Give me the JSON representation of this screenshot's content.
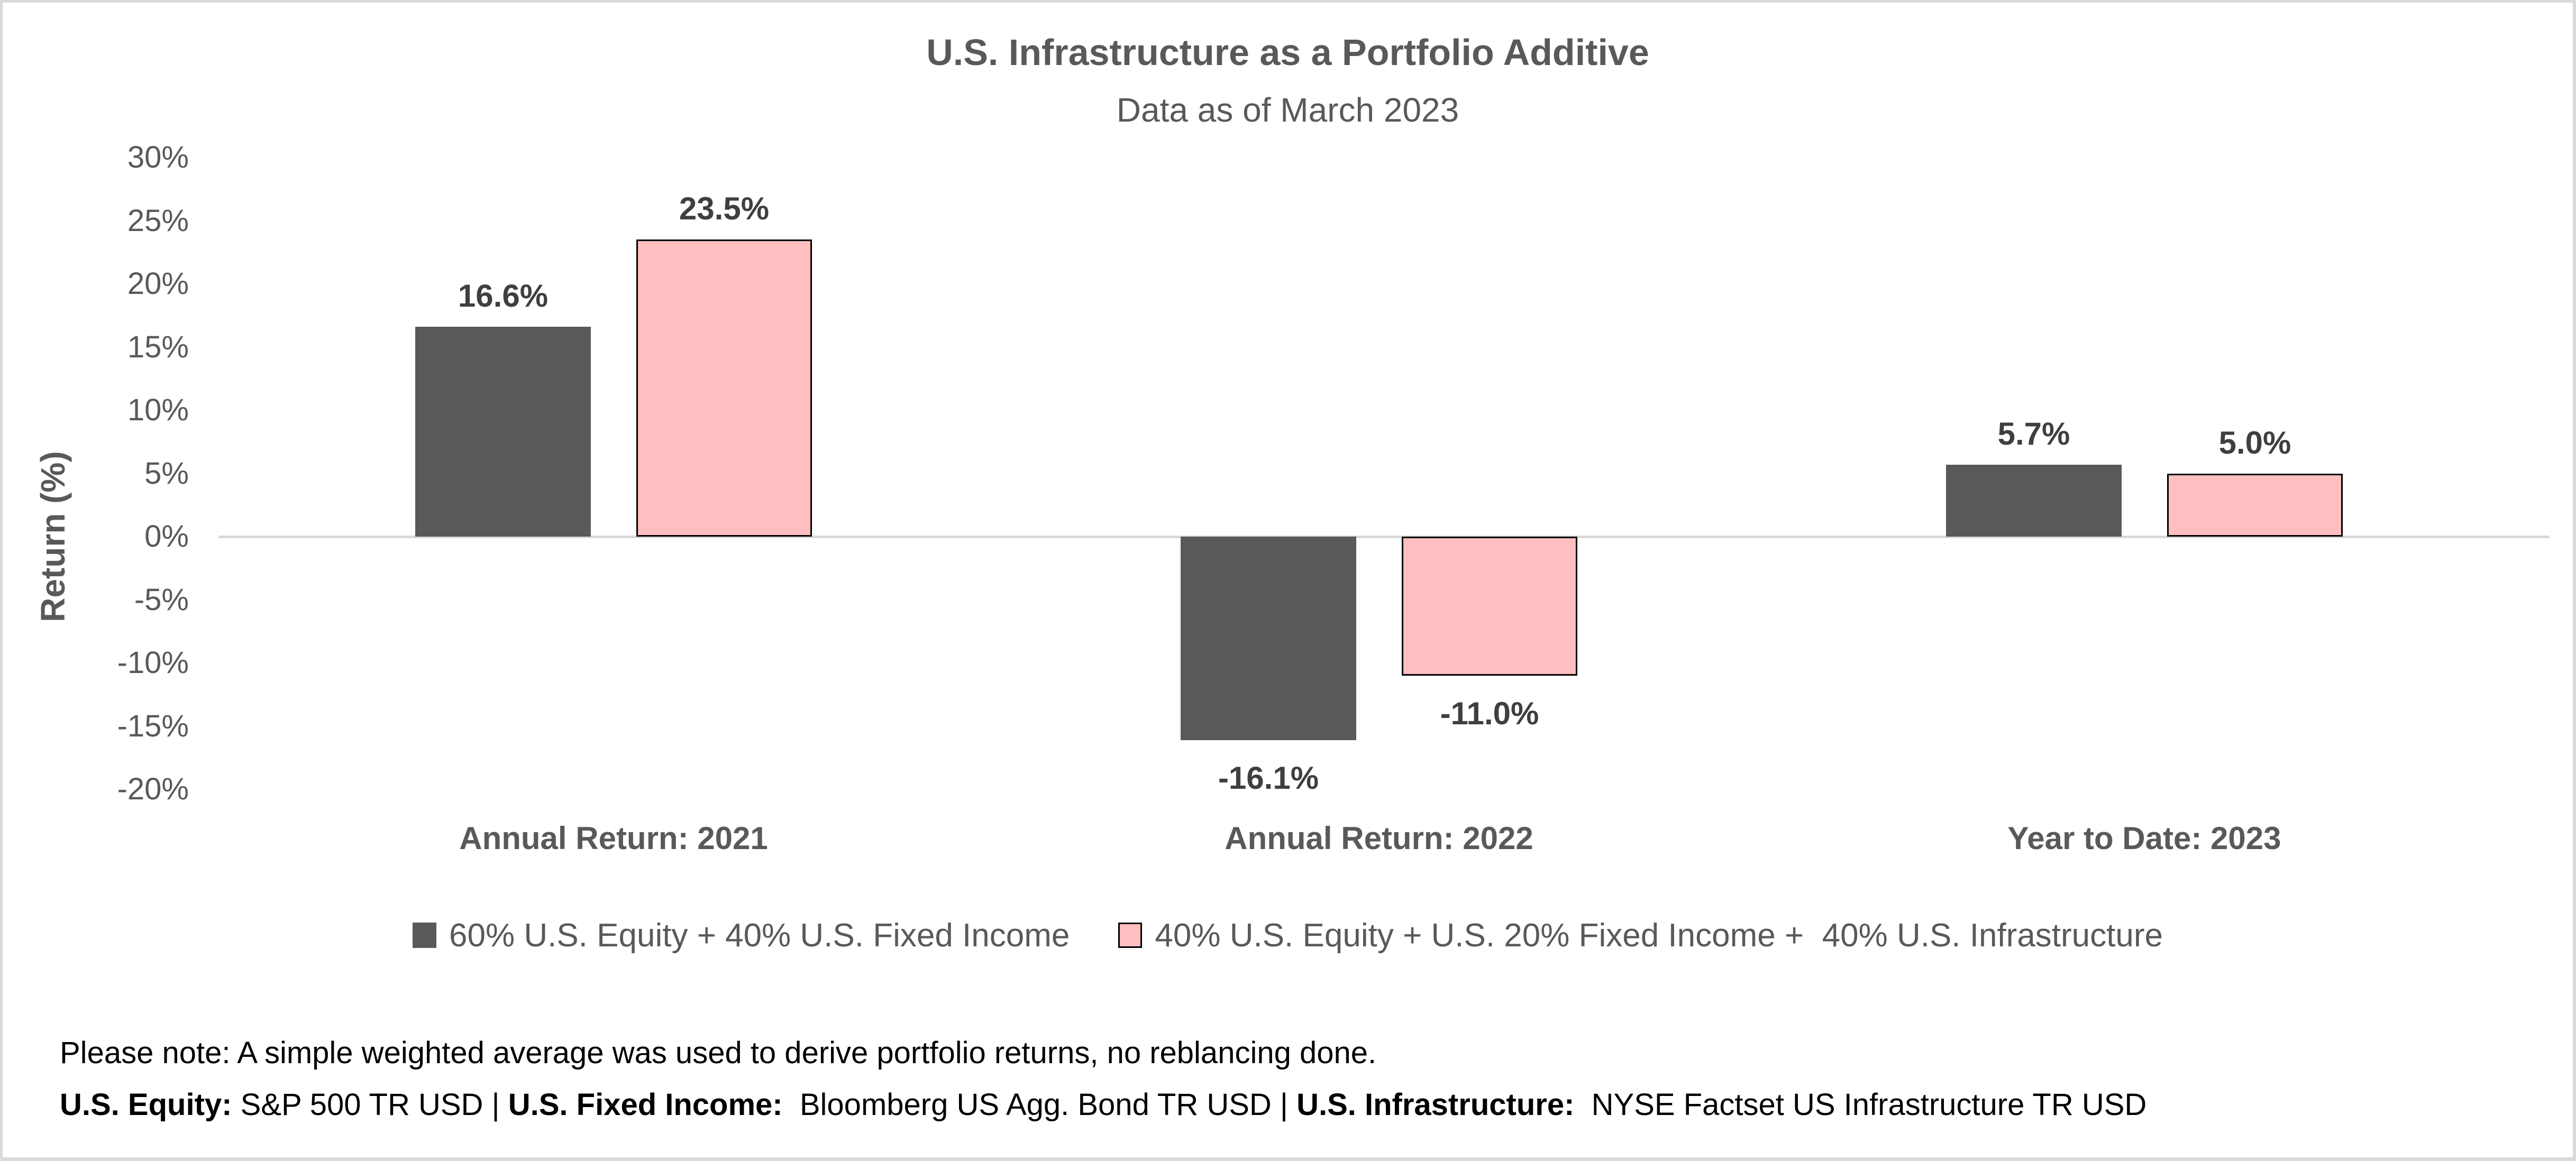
{
  "chart": {
    "title": "U.S. Infrastructure as a Portfolio Additive",
    "subtitle": "Data as of March 2023",
    "y_axis_title": "Return (%)"
  },
  "chart_data": {
    "type": "bar",
    "categories": [
      "Annual Return: 2021",
      "Annual Return: 2022",
      "Year to Date: 2023"
    ],
    "series": [
      {
        "name": "60% U.S. Equity + 40% U.S. Fixed Income",
        "color": "#595959",
        "border_color": null,
        "values": [
          16.6,
          -16.1,
          5.7
        ],
        "value_labels": [
          "16.6%",
          "-16.1%",
          "5.7%"
        ]
      },
      {
        "name": "40% U.S. Equity + U.S. 20% Fixed Income +  40% U.S. Infrastructure",
        "color": "#FFBEBF",
        "border_color": "#000000",
        "values": [
          23.5,
          -11.0,
          5.0
        ],
        "value_labels": [
          "23.5%",
          "-11.0%",
          "5.0%"
        ]
      }
    ],
    "xlabel": "",
    "ylabel": "Return (%)",
    "ylim": [
      -20,
      30
    ],
    "ytick_step": 5,
    "ytick_labels": [
      "30%",
      "25%",
      "20%",
      "15%",
      "10%",
      "5%",
      "0%",
      "-5%",
      "-10%",
      "-15%",
      "-20%"
    ],
    "grid": false,
    "legend_position": "bottom",
    "axis_line_color": "#d9d9d9",
    "text_color": "#595959",
    "value_label_color": "#3f3f3f"
  },
  "footnotes": {
    "line1": "Please note: A simple weighted average was used to derive portfolio returns, no reblancing done.",
    "line2_segments": [
      {
        "text": "U.S. Equity:",
        "bold": true
      },
      {
        "text": " S&P 500 TR USD | ",
        "bold": false
      },
      {
        "text": "U.S. Fixed Income:",
        "bold": true
      },
      {
        "text": "  Bloomberg US Agg. Bond TR USD | ",
        "bold": false
      },
      {
        "text": "U.S. Infrastructure:",
        "bold": true
      },
      {
        "text": "  NYSE Factset US Infrastructure TR USD",
        "bold": false
      }
    ]
  }
}
